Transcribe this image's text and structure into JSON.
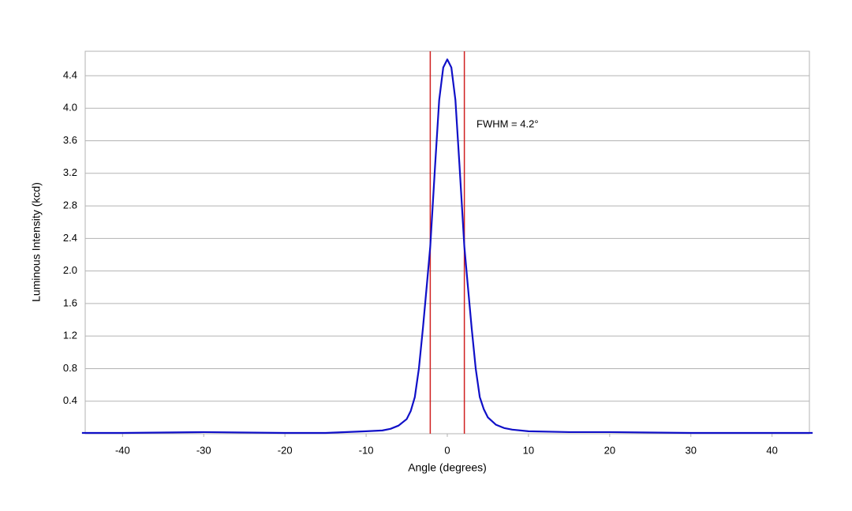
{
  "chart_data": {
    "type": "line",
    "x_label": "Angle (degrees)",
    "y_label": "Luminous Intensity (kcd)",
    "x": [
      -45,
      -40,
      -30,
      -20,
      -15,
      -10,
      -8,
      -7,
      -6,
      -5,
      -4.5,
      -4,
      -3.5,
      -3,
      -2.5,
      -2.1,
      -1.5,
      -1,
      -0.5,
      0,
      0.5,
      1,
      1.5,
      2.1,
      2.5,
      3,
      3.5,
      4,
      4.5,
      5,
      6,
      7,
      8,
      10,
      15,
      20,
      30,
      40,
      45
    ],
    "values": [
      0.01,
      0.01,
      0.02,
      0.01,
      0.01,
      0.03,
      0.04,
      0.06,
      0.1,
      0.18,
      0.28,
      0.45,
      0.8,
      1.3,
      1.85,
      2.3,
      3.3,
      4.1,
      4.5,
      4.6,
      4.5,
      4.1,
      3.3,
      2.3,
      1.85,
      1.3,
      0.8,
      0.45,
      0.3,
      0.2,
      0.11,
      0.07,
      0.05,
      0.03,
      0.02,
      0.02,
      0.01,
      0.01,
      0.01
    ],
    "color": "#1010c8",
    "vlines": [
      -2.1,
      2.1
    ],
    "vline_color": "#d02020",
    "annotation": "FWHM = 4.2°",
    "xlim": [
      -44.6,
      44.6
    ],
    "ylim": [
      0,
      4.7
    ],
    "xticks": [
      -40,
      -30,
      -20,
      -10,
      0,
      10,
      20,
      30,
      40
    ],
    "yticks": [
      0.4,
      0.8,
      1.2,
      1.6,
      {
        "value": 2,
        "label": "2.0"
      },
      2.4,
      2.8,
      3.2,
      3.6,
      {
        "value": 4,
        "label": "4.0"
      },
      4.4
    ],
    "grid": true
  }
}
